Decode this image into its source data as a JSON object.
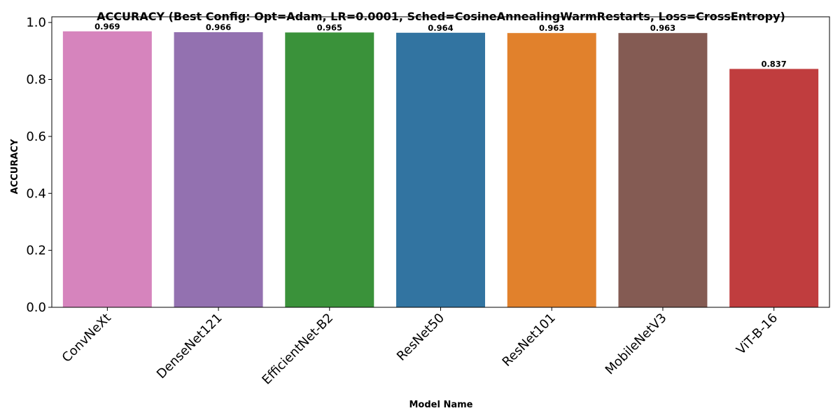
{
  "chart_data": {
    "type": "bar",
    "title": "ACCURACY (Best Config: Opt=Adam, LR=0.0001, Sched=CosineAnnealingWarmRestarts, Loss=CrossEntropy)",
    "xlabel": "Model Name",
    "ylabel": "ACCURACY",
    "categories": [
      "ConvNeXt",
      "DenseNet121",
      "EfficientNet-B2",
      "ResNet50",
      "ResNet101",
      "MobileNetV3",
      "ViT-B-16"
    ],
    "values": [
      0.969,
      0.966,
      0.965,
      0.964,
      0.963,
      0.963,
      0.837
    ],
    "value_labels": [
      "0.969",
      "0.966",
      "0.965",
      "0.964",
      "0.963",
      "0.963",
      "0.837"
    ],
    "colors": [
      "#d684bd",
      "#9371b0",
      "#3a923a",
      "#3274a1",
      "#e1812c",
      "#845b53",
      "#c03d3e"
    ],
    "ylim": [
      0,
      1.02
    ],
    "yticks": [
      0.0,
      0.2,
      0.4,
      0.6,
      0.8,
      1.0
    ],
    "ytick_labels": [
      "0.0",
      "0.2",
      "0.4",
      "0.6",
      "0.8",
      "1.0"
    ],
    "grid": false,
    "legend": "none"
  }
}
